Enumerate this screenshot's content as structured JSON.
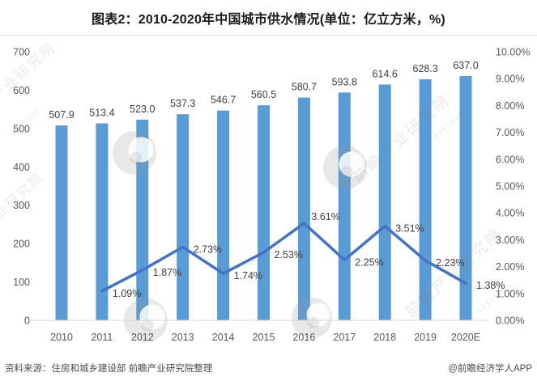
{
  "title": "图表2：2010-2020年中国城市供水情况(单位：亿立方米，%)",
  "footer": {
    "source": "资料来源：住房和城乡建设部 前瞻产业研究院整理",
    "brand": "@前瞻经济学人APP"
  },
  "watermark": {
    "text": "前瞻产业研究院",
    "digits": "8395991"
  },
  "colors": {
    "bar": "#5B9BD5",
    "line": "#4472C4",
    "axis_text": "#595959",
    "value_text": "#404040",
    "baseline": "#D9D9D9",
    "title_text": "#1a1a1a",
    "footer_text": "#4d4d4d"
  },
  "chart_data": {
    "type": "combo(bar+line)",
    "title": "图表2：2010-2020年中国城市供水情况(单位：亿立方米，%)",
    "grid": false,
    "legend": false,
    "categories": [
      "2010",
      "2011",
      "2012",
      "2013",
      "2014",
      "2015",
      "2016",
      "2017",
      "2018",
      "2019",
      "2020E"
    ],
    "bar_series": {
      "axis": "left",
      "values": [
        507.9,
        513.4,
        523.0,
        537.3,
        546.7,
        560.5,
        580.7,
        593.8,
        614.6,
        628.3,
        637.0
      ],
      "value_labels": [
        "507.9",
        "513.4",
        "523.0",
        "537.3",
        "546.7",
        "560.5",
        "580.7",
        "593.8",
        "614.6",
        "628.3",
        "637.0"
      ]
    },
    "line_series": {
      "axis": "right",
      "values_percent": [
        null,
        1.09,
        1.87,
        2.73,
        1.74,
        2.53,
        3.61,
        2.25,
        3.51,
        2.23,
        1.38
      ],
      "point_labels": [
        "",
        "1.09%",
        "1.87%",
        "2.73%",
        "1.74%",
        "2.53%",
        "3.61%",
        "2.25%",
        "3.51%",
        "2.23%",
        "1.38%"
      ]
    },
    "left_axis": {
      "min": 0,
      "max": 700,
      "step": 100,
      "tick_labels": [
        "0",
        "100",
        "200",
        "300",
        "400",
        "500",
        "600",
        "700"
      ]
    },
    "right_axis": {
      "min": 0,
      "max": 10,
      "step": 1,
      "tick_labels": [
        "0.00%",
        "1.00%",
        "2.00%",
        "3.00%",
        "4.00%",
        "5.00%",
        "6.00%",
        "7.00%",
        "8.00%",
        "9.00%",
        "10.00%"
      ]
    }
  }
}
